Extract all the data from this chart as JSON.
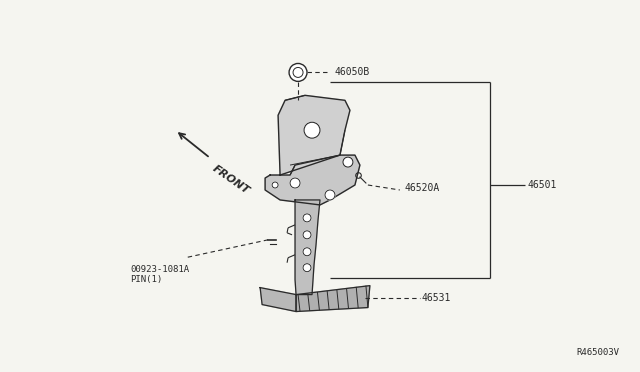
{
  "bg_color": "#f5f5f0",
  "line_color": "#2a2a2a",
  "text_color": "#2a2a2a",
  "fig_width": 6.4,
  "fig_height": 3.72,
  "dpi": 100,
  "reference_code": "R465003V",
  "label_46050B": "46050B",
  "label_46520A": "46520A",
  "label_46501": "46501",
  "label_46531": "46531",
  "label_pin": "00923-1081A\nPIN(1)",
  "label_front": "FRONT"
}
